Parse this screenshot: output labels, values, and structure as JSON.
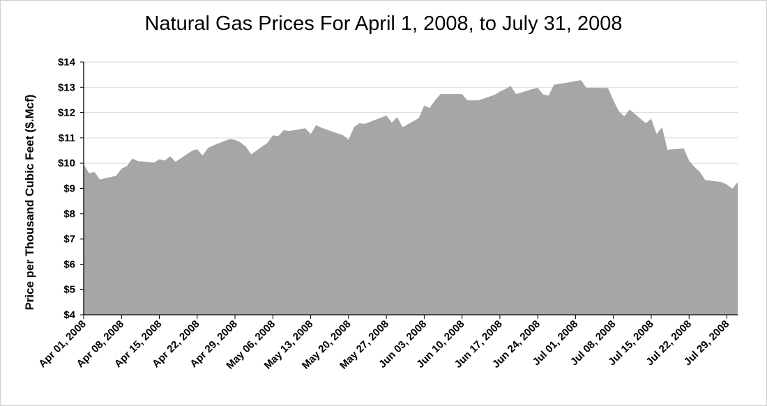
{
  "chart_data": {
    "type": "area",
    "title": "Natural Gas Prices For April 1, 2008, to July 31, 2008",
    "xlabel": "",
    "ylabel": "Price per Thousand Cubic Feet ($.Mcf)",
    "ylim": [
      4,
      14
    ],
    "y_ticks": [
      "$4",
      "$5",
      "$6",
      "$7",
      "$8",
      "$9",
      "$10",
      "$11",
      "$12",
      "$13",
      "$14"
    ],
    "x_ticks": [
      "Apr 01, 2008",
      "Apr 08, 2008",
      "Apr 15, 2008",
      "Apr 22, 2008",
      "Apr 29, 2008",
      "May 06, 2008",
      "May 13, 2008",
      "May 20, 2008",
      "May 27, 2008",
      "Jun 03, 2008",
      "Jun 10, 2008",
      "Jun 17, 2008",
      "Jun 24, 2008",
      "Jul 01, 2008",
      "Jul 08, 2008",
      "Jul 15, 2008",
      "Jul 22, 2008",
      "Jul 29, 2008"
    ],
    "grid": true,
    "fill_color": "#a6a6a6",
    "x": [
      "2008-04-01",
      "2008-04-02",
      "2008-04-03",
      "2008-04-04",
      "2008-04-07",
      "2008-04-08",
      "2008-04-09",
      "2008-04-10",
      "2008-04-11",
      "2008-04-14",
      "2008-04-15",
      "2008-04-16",
      "2008-04-17",
      "2008-04-18",
      "2008-04-21",
      "2008-04-22",
      "2008-04-23",
      "2008-04-24",
      "2008-04-25",
      "2008-04-28",
      "2008-04-29",
      "2008-04-30",
      "2008-05-01",
      "2008-05-02",
      "2008-05-05",
      "2008-05-06",
      "2008-05-07",
      "2008-05-08",
      "2008-05-09",
      "2008-05-12",
      "2008-05-13",
      "2008-05-14",
      "2008-05-15",
      "2008-05-16",
      "2008-05-19",
      "2008-05-20",
      "2008-05-21",
      "2008-05-22",
      "2008-05-23",
      "2008-05-27",
      "2008-05-28",
      "2008-05-29",
      "2008-05-30",
      "2008-06-02",
      "2008-06-03",
      "2008-06-04",
      "2008-06-05",
      "2008-06-06",
      "2008-06-09",
      "2008-06-10",
      "2008-06-11",
      "2008-06-12",
      "2008-06-13",
      "2008-06-16",
      "2008-06-17",
      "2008-06-18",
      "2008-06-19",
      "2008-06-20",
      "2008-06-23",
      "2008-06-24",
      "2008-06-25",
      "2008-06-26",
      "2008-06-27",
      "2008-06-30",
      "2008-07-01",
      "2008-07-02",
      "2008-07-03",
      "2008-07-07",
      "2008-07-08",
      "2008-07-09",
      "2008-07-10",
      "2008-07-11",
      "2008-07-14",
      "2008-07-15",
      "2008-07-16",
      "2008-07-17",
      "2008-07-18",
      "2008-07-21",
      "2008-07-22",
      "2008-07-23",
      "2008-07-24",
      "2008-07-25",
      "2008-07-28",
      "2008-07-29",
      "2008-07-30",
      "2008-07-31"
    ],
    "series": [
      {
        "values": [
          9.95,
          9.6,
          9.65,
          9.35,
          9.5,
          9.78,
          9.88,
          10.18,
          10.08,
          10.02,
          10.15,
          10.1,
          10.27,
          10.05,
          10.48,
          10.55,
          10.3,
          10.6,
          10.7,
          10.95,
          10.92,
          10.82,
          10.65,
          10.35,
          10.8,
          11.1,
          11.07,
          11.3,
          11.27,
          11.38,
          11.15,
          11.5,
          11.4,
          11.32,
          11.1,
          10.92,
          11.42,
          11.58,
          11.55,
          11.88,
          11.6,
          11.82,
          11.42,
          11.78,
          12.28,
          12.18,
          12.48,
          12.73,
          12.73,
          12.73,
          12.48,
          12.48,
          12.48,
          12.7,
          12.83,
          12.93,
          13.05,
          12.73,
          12.93,
          12.98,
          12.72,
          12.67,
          13.1,
          13.2,
          13.25,
          13.28,
          12.98,
          12.97,
          12.48,
          12.05,
          11.85,
          12.12,
          11.58,
          11.75,
          11.15,
          11.42,
          10.53,
          10.58,
          10.1,
          9.85,
          9.65,
          9.33,
          9.25,
          9.15,
          8.98,
          9.25
        ]
      }
    ]
  }
}
